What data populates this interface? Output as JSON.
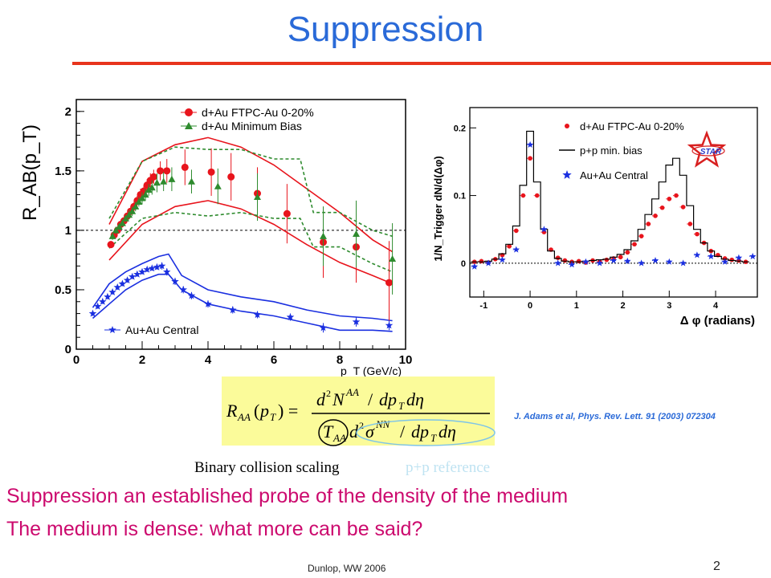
{
  "slide": {
    "title": "Suppression",
    "accent_color": "#e8341c",
    "title_color": "#2a6ad8",
    "footer": "Dunlop, WW 2006",
    "page_number": "2",
    "citation": "J. Adams et al, Phys. Rev. Lett. 91 (2003) 072304",
    "caption_binary": "Binary collision scaling",
    "caption_pp": "p+p reference",
    "body_lines": [
      "Suppression an established probe of the density of the medium",
      "The medium is dense: what more can be said?"
    ],
    "star_logo": "STAR"
  },
  "formula": {
    "text": "R_AA(p_T) = (d^2 N^AA / dp_T dη) / (T_AA d^2 σ^NN / dp_T dη)"
  },
  "chart_data": [
    {
      "type": "scatter",
      "ylabel": "R_AB(p_T)",
      "xlabel": "p_T (GeV/c)",
      "xlim": [
        0,
        10
      ],
      "ylim": [
        0,
        2.1
      ],
      "xticks": [
        "0",
        "2",
        "4",
        "6",
        "8",
        "10"
      ],
      "yticks": [
        "0",
        "0.5",
        "1",
        "1.5",
        "2"
      ],
      "reference_line": 1,
      "legend_position": "top-center",
      "series": [
        {
          "name": "d+Au FTPC-Au 0-20%",
          "color": "#e8141c",
          "marker": "circle",
          "x": [
            1.05,
            1.15,
            1.25,
            1.35,
            1.45,
            1.55,
            1.65,
            1.75,
            1.85,
            1.95,
            2.05,
            2.15,
            2.25,
            2.35,
            2.55,
            2.75,
            3.3,
            4.1,
            4.7,
            5.5,
            6.4,
            7.5,
            8.5,
            9.5
          ],
          "y": [
            0.88,
            0.96,
            1.0,
            1.05,
            1.08,
            1.12,
            1.16,
            1.2,
            1.25,
            1.3,
            1.33,
            1.38,
            1.42,
            1.45,
            1.5,
            1.5,
            1.53,
            1.49,
            1.45,
            1.31,
            1.14,
            0.9,
            0.86,
            0.56
          ],
          "yerr": [
            0.03,
            0.03,
            0.03,
            0.03,
            0.03,
            0.03,
            0.04,
            0.04,
            0.04,
            0.05,
            0.05,
            0.05,
            0.06,
            0.06,
            0.08,
            0.1,
            0.15,
            0.2,
            0.2,
            0.22,
            0.25,
            0.3,
            0.3,
            0.35
          ]
        },
        {
          "name": "d+Au Minimum Bias",
          "color": "#2e8b2e",
          "marker": "triangle",
          "x": [
            1.1,
            1.2,
            1.3,
            1.4,
            1.5,
            1.6,
            1.7,
            1.8,
            1.9,
            2.0,
            2.1,
            2.2,
            2.3,
            2.45,
            2.65,
            2.9,
            3.5,
            4.3,
            5.5,
            7.5,
            8.5,
            9.6
          ],
          "y": [
            0.95,
            1.0,
            1.03,
            1.06,
            1.1,
            1.13,
            1.16,
            1.2,
            1.24,
            1.27,
            1.3,
            1.34,
            1.36,
            1.4,
            1.41,
            1.43,
            1.41,
            1.37,
            1.28,
            0.95,
            0.97,
            0.76
          ],
          "yerr": [
            0.03,
            0.03,
            0.03,
            0.03,
            0.03,
            0.04,
            0.04,
            0.04,
            0.04,
            0.05,
            0.05,
            0.05,
            0.06,
            0.08,
            0.08,
            0.1,
            0.1,
            0.15,
            0.2,
            0.25,
            0.28,
            0.3
          ]
        },
        {
          "name": "Au+Au Central",
          "color": "#1a2fe0",
          "marker": "star",
          "x": [
            0.5,
            0.65,
            0.8,
            0.95,
            1.1,
            1.25,
            1.4,
            1.55,
            1.7,
            1.85,
            2.0,
            2.15,
            2.3,
            2.45,
            2.6,
            2.75,
            3.0,
            3.25,
            3.5,
            4.0,
            4.75,
            5.5,
            6.5,
            7.5,
            8.5,
            9.5
          ],
          "y": [
            0.3,
            0.36,
            0.4,
            0.44,
            0.48,
            0.52,
            0.55,
            0.58,
            0.61,
            0.63,
            0.65,
            0.67,
            0.68,
            0.69,
            0.7,
            0.65,
            0.57,
            0.5,
            0.45,
            0.38,
            0.33,
            0.29,
            0.27,
            0.18,
            0.23,
            0.2
          ],
          "yerr": [
            0.02,
            0.02,
            0.02,
            0.02,
            0.02,
            0.02,
            0.02,
            0.02,
            0.02,
            0.02,
            0.02,
            0.02,
            0.02,
            0.02,
            0.03,
            0.03,
            0.03,
            0.03,
            0.03,
            0.03,
            0.03,
            0.03,
            0.03,
            0.04,
            0.04,
            0.04
          ]
        }
      ],
      "bands": [
        {
          "color": "#e8141c",
          "style": "solid",
          "x": [
            1.0,
            2.0,
            3.0,
            4.0,
            5.0,
            6.0,
            7.0,
            8.0,
            9.0,
            9.6
          ],
          "upper": [
            1.05,
            1.58,
            1.72,
            1.78,
            1.7,
            1.55,
            1.35,
            1.15,
            0.92,
            0.82
          ],
          "lower": [
            0.75,
            1.05,
            1.2,
            1.25,
            1.18,
            1.05,
            0.88,
            0.73,
            0.62,
            0.55
          ]
        },
        {
          "color": "#2e8b2e",
          "style": "dashed",
          "x": [
            1.0,
            2.0,
            3.0,
            4.0,
            5.0,
            6.0,
            6.8,
            7.2,
            8.0,
            9.0,
            9.6
          ],
          "upper": [
            1.1,
            1.58,
            1.7,
            1.68,
            1.68,
            1.6,
            1.6,
            1.15,
            1.15,
            1.0,
            0.95
          ],
          "lower": [
            0.85,
            1.1,
            1.15,
            1.12,
            1.15,
            1.1,
            1.1,
            0.86,
            0.86,
            0.72,
            0.65
          ]
        },
        {
          "color": "#1a2fe0",
          "style": "solid",
          "x": [
            0.5,
            1.0,
            1.5,
            2.0,
            2.5,
            2.8,
            3.2,
            4.0,
            5.0,
            6.0,
            7.0,
            8.0,
            9.0,
            9.6
          ],
          "upper": [
            0.35,
            0.55,
            0.65,
            0.72,
            0.78,
            0.8,
            0.62,
            0.5,
            0.44,
            0.4,
            0.33,
            0.28,
            0.26,
            0.24
          ],
          "lower": [
            0.26,
            0.38,
            0.5,
            0.58,
            0.63,
            0.63,
            0.5,
            0.38,
            0.32,
            0.28,
            0.22,
            0.16,
            0.16,
            0.15
          ]
        }
      ]
    },
    {
      "type": "scatter",
      "ylabel": "1/N_Trigger dN/d(Δφ)",
      "xlabel": "Δ φ (radians)",
      "xlim": [
        -1.3,
        4.9
      ],
      "ylim": [
        -0.05,
        0.23
      ],
      "xticks": [
        "-1",
        "0",
        "1",
        "2",
        "3",
        "4"
      ],
      "yticks": [
        "0",
        "0.1",
        "0.2"
      ],
      "legend_position": "top-right",
      "series": [
        {
          "name": "d+Au FTPC-Au 0-20%",
          "color": "#e8141c",
          "marker": "circle",
          "x": [
            -1.2,
            -1.05,
            -0.9,
            -0.75,
            -0.6,
            -0.45,
            -0.3,
            -0.15,
            0.0,
            0.15,
            0.3,
            0.45,
            0.6,
            0.75,
            0.9,
            1.05,
            1.2,
            1.35,
            1.5,
            1.65,
            1.8,
            1.95,
            2.1,
            2.25,
            2.4,
            2.55,
            2.7,
            2.85,
            3.0,
            3.15,
            3.3,
            3.45,
            3.6,
            3.75,
            3.9,
            4.05,
            4.2,
            4.35,
            4.5,
            4.65
          ],
          "y": [
            0.002,
            0.003,
            0.001,
            0.006,
            0.012,
            0.025,
            0.048,
            0.1,
            0.155,
            0.1,
            0.046,
            0.02,
            0.008,
            0.004,
            0.002,
            0.003,
            0.001,
            0.004,
            0.002,
            0.005,
            0.007,
            0.009,
            0.016,
            0.028,
            0.04,
            0.058,
            0.07,
            0.082,
            0.095,
            0.1,
            0.083,
            0.058,
            0.043,
            0.03,
            0.018,
            0.012,
            0.007,
            0.005,
            0.004,
            0.002
          ]
        },
        {
          "name": "p+p min. bias",
          "color": "#000000",
          "marker": "histogram",
          "x": [
            -1.2,
            -1.05,
            -0.9,
            -0.75,
            -0.6,
            -0.45,
            -0.3,
            -0.15,
            0.0,
            0.15,
            0.3,
            0.45,
            0.6,
            0.75,
            0.9,
            1.05,
            1.2,
            1.35,
            1.5,
            1.65,
            1.8,
            1.95,
            2.1,
            2.25,
            2.4,
            2.55,
            2.7,
            2.85,
            3.0,
            3.15,
            3.3,
            3.45,
            3.6,
            3.75,
            3.9,
            4.05,
            4.2,
            4.35,
            4.5,
            4.65
          ],
          "y": [
            0.002,
            0.002,
            0.003,
            0.006,
            0.014,
            0.028,
            0.055,
            0.115,
            0.195,
            0.12,
            0.05,
            0.018,
            0.007,
            0.003,
            0.002,
            0.002,
            0.003,
            0.004,
            0.005,
            0.006,
            0.009,
            0.013,
            0.02,
            0.033,
            0.05,
            0.072,
            0.095,
            0.12,
            0.145,
            0.155,
            0.13,
            0.085,
            0.05,
            0.03,
            0.018,
            0.01,
            0.006,
            0.004,
            0.003,
            0.002
          ]
        },
        {
          "name": "Au+Au Central",
          "color": "#1a2fe0",
          "marker": "star",
          "x": [
            -1.2,
            -0.9,
            -0.6,
            -0.3,
            0.0,
            0.3,
            0.6,
            0.9,
            1.2,
            1.5,
            1.8,
            2.1,
            2.4,
            2.7,
            3.0,
            3.3,
            3.6,
            3.9,
            4.2,
            4.5,
            4.8
          ],
          "y": [
            -0.005,
            0.0,
            0.005,
            0.02,
            0.175,
            0.05,
            0.0,
            -0.002,
            0.002,
            0.0,
            0.004,
            0.003,
            0.0,
            0.004,
            0.002,
            0.0,
            0.012,
            0.01,
            0.002,
            0.008,
            0.01
          ]
        }
      ]
    }
  ]
}
